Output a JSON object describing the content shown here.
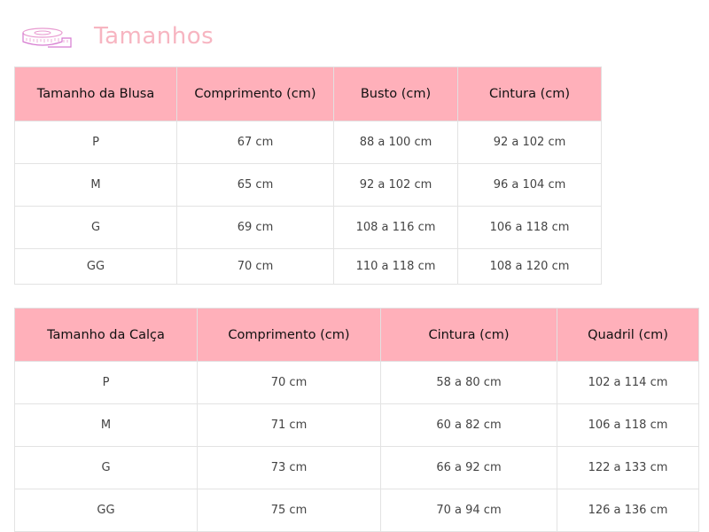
{
  "header": {
    "title": "Tamanhos",
    "icon": "measuring-tape-icon",
    "title_color": "#f7b5c1"
  },
  "accent": "#ffb0ba",
  "blusa": {
    "columns": [
      "Tamanho da Blusa",
      "Comprimento (cm)",
      "Busto (cm)",
      "Cintura (cm)"
    ],
    "rows": [
      [
        "P",
        "67 cm",
        "88 a 100 cm",
        "92 a 102 cm"
      ],
      [
        "M",
        "65 cm",
        "92 a 102 cm",
        "96 a 104 cm"
      ],
      [
        "G",
        "69 cm",
        "108 a 116 cm",
        "106 a 118 cm"
      ],
      [
        "GG",
        "70 cm",
        "110 a 118 cm",
        "108 a 120 cm"
      ]
    ]
  },
  "calca": {
    "columns": [
      "Tamanho da Calça",
      "Comprimento (cm)",
      "Cintura (cm)",
      "Quadril (cm)"
    ],
    "rows": [
      [
        "P",
        "70 cm",
        "58 a 80 cm",
        "102 a 114 cm"
      ],
      [
        "M",
        "71 cm",
        "60 a 82 cm",
        "106 a 118 cm"
      ],
      [
        "G",
        "73 cm",
        "66 a 92 cm",
        "122 a 133 cm"
      ],
      [
        "GG",
        "75 cm",
        "70 a 94 cm",
        "126 a 136 cm"
      ]
    ]
  }
}
